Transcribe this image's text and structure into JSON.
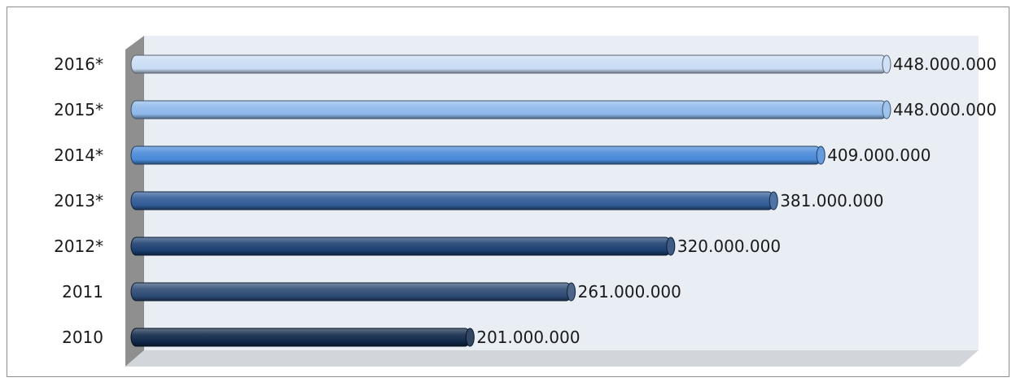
{
  "chart_data": {
    "type": "bar",
    "orientation": "horizontal",
    "categories": [
      "2016*",
      "2015*",
      "2014*",
      "2013*",
      "2012*",
      "2011",
      "2010"
    ],
    "values": [
      448000000,
      448000000,
      409000000,
      381000000,
      320000000,
      261000000,
      201000000
    ],
    "value_labels": [
      "448.000.000",
      "448.000.000",
      "409.000.000",
      "381.000.000",
      "320.000.000",
      "261.000.000",
      "201.000.000"
    ],
    "xlim": [
      0,
      448000000
    ],
    "grid": false,
    "legend": "none",
    "style": "3d-cylinder",
    "bar_colors": [
      "#c8dcf5",
      "#8db8ea",
      "#4a8ad8",
      "#2f5b96",
      "#1b3e70",
      "#2c4a73",
      "#0f2749"
    ],
    "background": {
      "plot_wall": "#e9edf4",
      "side_wall": "#8f8f8f",
      "floor": "#d2d5da"
    }
  }
}
